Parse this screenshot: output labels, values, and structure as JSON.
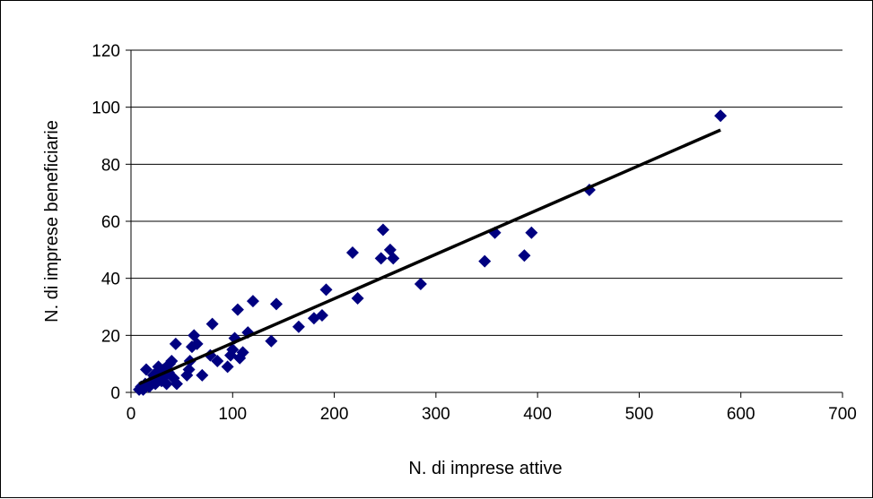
{
  "chart_data": {
    "type": "scatter",
    "title": "",
    "xlabel": "N. di imprese attive",
    "ylabel": "N. di  imprese beneficiarie",
    "xlim": [
      0,
      700
    ],
    "ylim": [
      0,
      120
    ],
    "x_ticks": [
      "0",
      "100",
      "200",
      "300",
      "400",
      "500",
      "600",
      "700"
    ],
    "y_ticks": [
      "0",
      "20",
      "40",
      "60",
      "80",
      "100",
      "120"
    ],
    "grid": "horizontal",
    "legend": "none",
    "marker": "diamond",
    "colors": {
      "marker": "#000080",
      "trendline": "#000000",
      "grid": "#000000"
    },
    "series": [
      {
        "points": [
          [
            8,
            1
          ],
          [
            10,
            2
          ],
          [
            12,
            1
          ],
          [
            14,
            3
          ],
          [
            15,
            8
          ],
          [
            18,
            2
          ],
          [
            20,
            4
          ],
          [
            22,
            6
          ],
          [
            24,
            3
          ],
          [
            25,
            7
          ],
          [
            27,
            9
          ],
          [
            28,
            5
          ],
          [
            30,
            4
          ],
          [
            32,
            8
          ],
          [
            34,
            6
          ],
          [
            35,
            3
          ],
          [
            37,
            7
          ],
          [
            38,
            10
          ],
          [
            40,
            11
          ],
          [
            42,
            5
          ],
          [
            44,
            17
          ],
          [
            45,
            3
          ],
          [
            55,
            6
          ],
          [
            57,
            8
          ],
          [
            58,
            11
          ],
          [
            60,
            16
          ],
          [
            62,
            20
          ],
          [
            65,
            17
          ],
          [
            70,
            6
          ],
          [
            78,
            13
          ],
          [
            80,
            24
          ],
          [
            85,
            11
          ],
          [
            95,
            9
          ],
          [
            98,
            13
          ],
          [
            100,
            15
          ],
          [
            102,
            19
          ],
          [
            105,
            29
          ],
          [
            107,
            12
          ],
          [
            110,
            14
          ],
          [
            115,
            21
          ],
          [
            120,
            32
          ],
          [
            138,
            18
          ],
          [
            143,
            31
          ],
          [
            165,
            23
          ],
          [
            180,
            26
          ],
          [
            188,
            27
          ],
          [
            192,
            36
          ],
          [
            218,
            49
          ],
          [
            223,
            33
          ],
          [
            246,
            47
          ],
          [
            248,
            57
          ],
          [
            255,
            50
          ],
          [
            258,
            47
          ],
          [
            285,
            38
          ],
          [
            348,
            46
          ],
          [
            358,
            56
          ],
          [
            387,
            48
          ],
          [
            394,
            56
          ],
          [
            451,
            71
          ],
          [
            580,
            97
          ]
        ]
      }
    ],
    "trendline": {
      "x": [
        8,
        580
      ],
      "y": [
        3,
        92
      ]
    }
  }
}
